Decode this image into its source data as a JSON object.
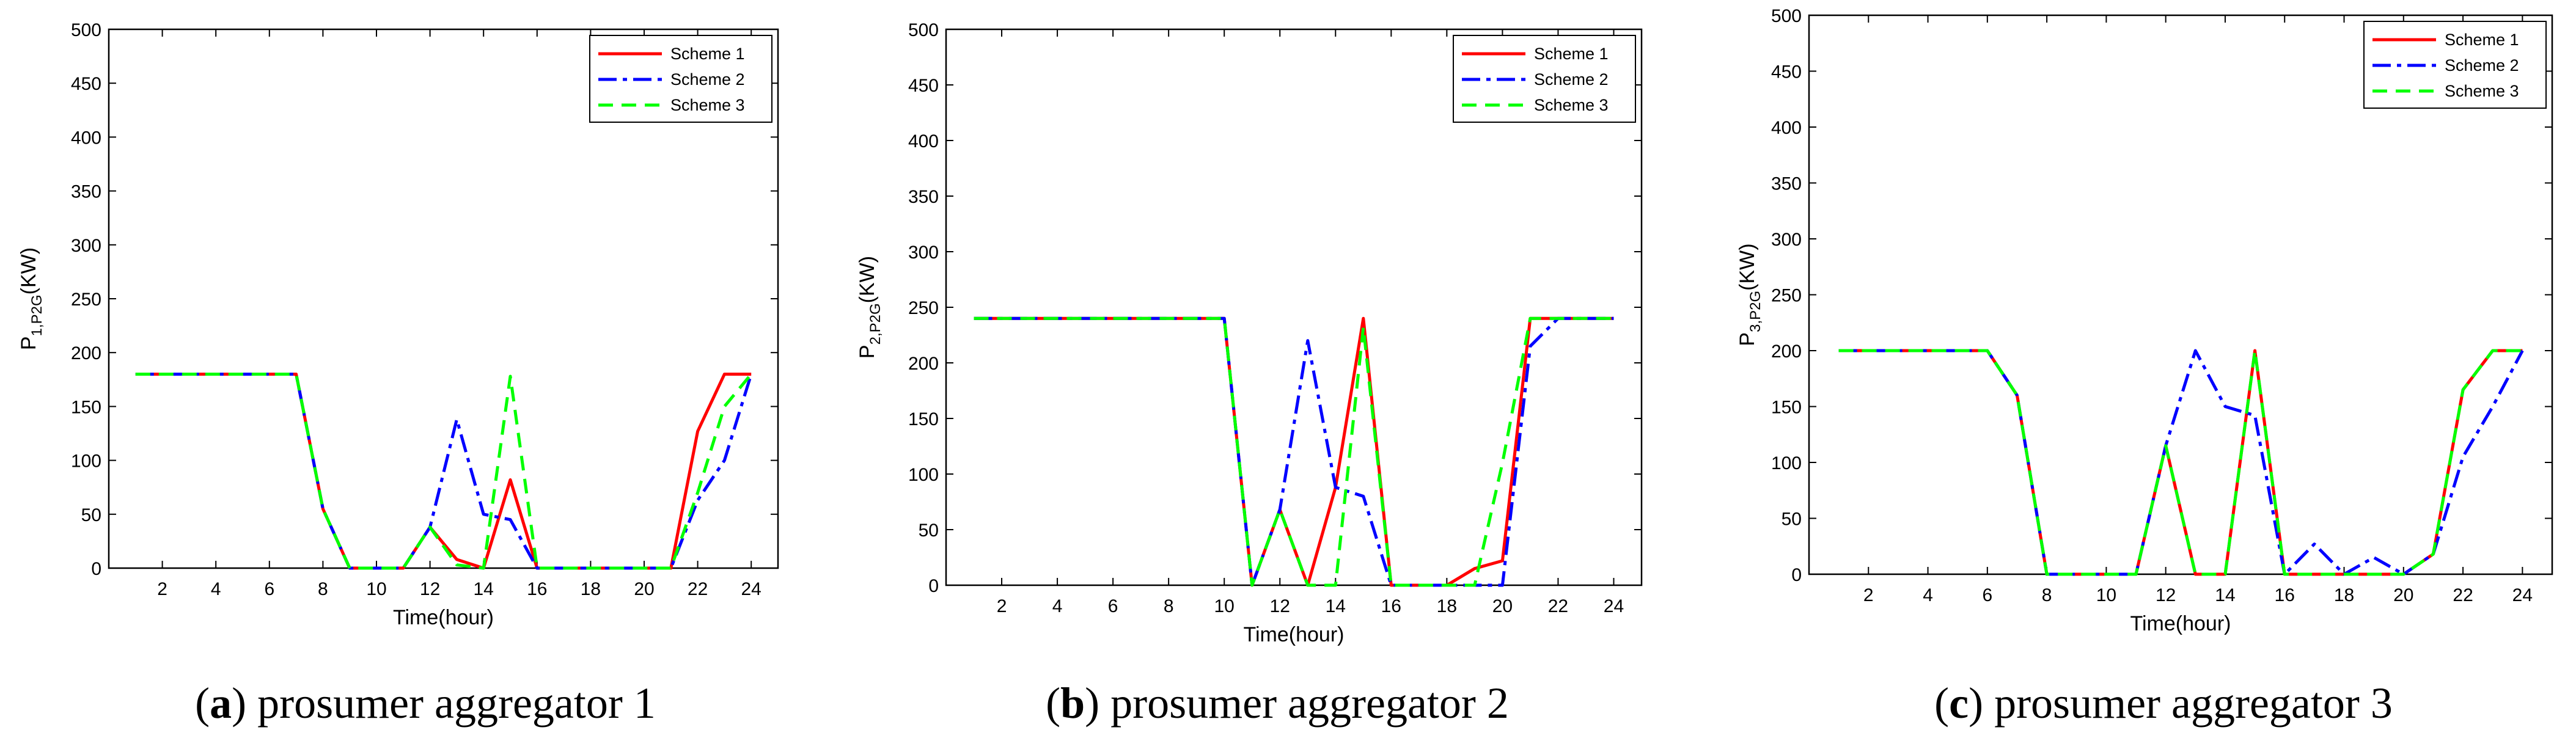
{
  "colors": {
    "scheme1": "#ff0000",
    "scheme2": "#0000ff",
    "scheme3": "#00ff00",
    "axis": "#000000"
  },
  "chart_data": [
    {
      "type": "line",
      "title": "",
      "xlabel": "Time(hour)",
      "ylabel_main": "P",
      "ylabel_sub": "1,P2G",
      "ylabel_unit": "(KW)",
      "xlim": [
        0,
        25
      ],
      "ylim": [
        0,
        500
      ],
      "xticks": [
        2,
        4,
        6,
        8,
        10,
        12,
        14,
        16,
        18,
        20,
        22,
        24
      ],
      "yticks": [
        0,
        50,
        100,
        150,
        200,
        250,
        300,
        350,
        400,
        450,
        500
      ],
      "legend_position": "top-right",
      "x": [
        1,
        2,
        3,
        4,
        5,
        6,
        7,
        8,
        9,
        10,
        11,
        12,
        13,
        14,
        15,
        16,
        17,
        18,
        19,
        20,
        21,
        22,
        23,
        24
      ],
      "series": [
        {
          "name": "Scheme 1",
          "style": "solid",
          "values": [
            180,
            180,
            180,
            180,
            180,
            180,
            180,
            55,
            0,
            0,
            0,
            38,
            8,
            0,
            82,
            0,
            0,
            0,
            0,
            0,
            0,
            127,
            180,
            180
          ]
        },
        {
          "name": "Scheme 2",
          "style": "dashdot",
          "values": [
            180,
            180,
            180,
            180,
            180,
            180,
            180,
            55,
            0,
            0,
            0,
            38,
            138,
            50,
            45,
            0,
            0,
            0,
            0,
            0,
            0,
            63,
            100,
            180
          ]
        },
        {
          "name": "Scheme 3",
          "style": "dashed",
          "values": [
            180,
            180,
            180,
            180,
            180,
            180,
            180,
            55,
            0,
            0,
            0,
            38,
            3,
            0,
            178,
            0,
            0,
            0,
            0,
            0,
            0,
            70,
            150,
            180
          ]
        }
      ],
      "caption_letter": "a",
      "caption_text": " prosumer aggregator 1"
    },
    {
      "type": "line",
      "title": "",
      "xlabel": "Time(hour)",
      "ylabel_main": "P",
      "ylabel_sub": "2,P2G",
      "ylabel_unit": "(KW)",
      "xlim": [
        0,
        25
      ],
      "ylim": [
        0,
        500
      ],
      "xticks": [
        2,
        4,
        6,
        8,
        10,
        12,
        14,
        16,
        18,
        20,
        22,
        24
      ],
      "yticks": [
        0,
        50,
        100,
        150,
        200,
        250,
        300,
        350,
        400,
        450,
        500
      ],
      "legend_position": "top-right",
      "x": [
        1,
        2,
        3,
        4,
        5,
        6,
        7,
        8,
        9,
        10,
        11,
        12,
        13,
        14,
        15,
        16,
        17,
        18,
        19,
        20,
        21,
        22,
        23,
        24
      ],
      "series": [
        {
          "name": "Scheme 1",
          "style": "solid",
          "values": [
            240,
            240,
            240,
            240,
            240,
            240,
            240,
            240,
            240,
            240,
            0,
            68,
            0,
            88,
            240,
            0,
            0,
            0,
            15,
            22,
            240,
            240,
            240,
            240
          ]
        },
        {
          "name": "Scheme 2",
          "style": "dashdot",
          "values": [
            240,
            240,
            240,
            240,
            240,
            240,
            240,
            240,
            240,
            240,
            0,
            68,
            220,
            88,
            80,
            0,
            0,
            0,
            0,
            0,
            215,
            240,
            240,
            240
          ]
        },
        {
          "name": "Scheme 3",
          "style": "dashed",
          "values": [
            240,
            240,
            240,
            240,
            240,
            240,
            240,
            240,
            240,
            240,
            0,
            68,
            0,
            0,
            232,
            0,
            0,
            0,
            0,
            110,
            240,
            240,
            240,
            240
          ]
        }
      ],
      "caption_letter": "b",
      "caption_text": " prosumer aggregator 2"
    },
    {
      "type": "line",
      "title": "",
      "xlabel": "Time(hour)",
      "ylabel_main": "P",
      "ylabel_sub": "3,P2G",
      "ylabel_unit": "(KW)",
      "xlim": [
        0,
        25
      ],
      "ylim": [
        0,
        500
      ],
      "xticks": [
        2,
        4,
        6,
        8,
        10,
        12,
        14,
        16,
        18,
        20,
        22,
        24
      ],
      "yticks": [
        0,
        50,
        100,
        150,
        200,
        250,
        300,
        350,
        400,
        450,
        500
      ],
      "legend_position": "top-right",
      "x": [
        1,
        2,
        3,
        4,
        5,
        6,
        7,
        8,
        9,
        10,
        11,
        12,
        13,
        14,
        15,
        16,
        17,
        18,
        19,
        20,
        21,
        22,
        23,
        24
      ],
      "series": [
        {
          "name": "Scheme 1",
          "style": "solid",
          "values": [
            200,
            200,
            200,
            200,
            200,
            200,
            160,
            0,
            0,
            0,
            0,
            115,
            0,
            0,
            200,
            0,
            0,
            0,
            0,
            0,
            18,
            165,
            200,
            200
          ]
        },
        {
          "name": "Scheme 2",
          "style": "dashdot",
          "values": [
            200,
            200,
            200,
            200,
            200,
            200,
            160,
            0,
            0,
            0,
            0,
            115,
            200,
            150,
            142,
            0,
            27,
            0,
            15,
            0,
            18,
            105,
            150,
            200
          ]
        },
        {
          "name": "Scheme 3",
          "style": "dashed",
          "values": [
            200,
            200,
            200,
            200,
            200,
            200,
            160,
            0,
            0,
            0,
            0,
            115,
            0,
            0,
            200,
            0,
            0,
            0,
            0,
            0,
            18,
            165,
            200,
            200
          ]
        }
      ],
      "caption_letter": "c",
      "caption_text": " prosumer aggregator 3"
    }
  ]
}
